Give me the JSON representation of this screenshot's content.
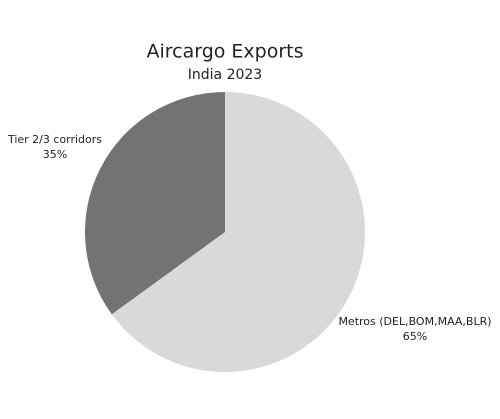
{
  "chart_data": {
    "type": "pie",
    "title": "Aircargo Exports",
    "subtitle": "India 2023",
    "categories": [
      "Metros (DEL,BOM,MAA,BLR)",
      "Tier 2/3 corridors"
    ],
    "values": [
      65,
      35
    ],
    "value_labels": [
      "65%",
      "35%"
    ],
    "colors": [
      "#d9d9d9",
      "#737373"
    ]
  }
}
